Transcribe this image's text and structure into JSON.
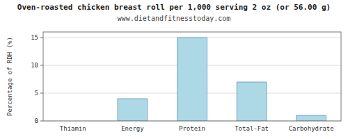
{
  "chart_data": {
    "type": "bar",
    "title": "Oven-roasted chicken breast roll per 1,000 serving 2 oz (or 56.00 g)",
    "subtitle": "www.dietandfitnesstoday.com",
    "ylabel": "Percentage of RDH (%)",
    "categories": [
      "Thiamin",
      "Energy",
      "Protein",
      "Total-Fat",
      "Carbohydrate"
    ],
    "values": [
      0.0,
      4.0,
      15.0,
      7.0,
      1.0
    ],
    "color": "#add8e6",
    "ylim": [
      0,
      16
    ],
    "yticks": [
      0,
      5,
      10,
      15
    ],
    "grid": true
  }
}
